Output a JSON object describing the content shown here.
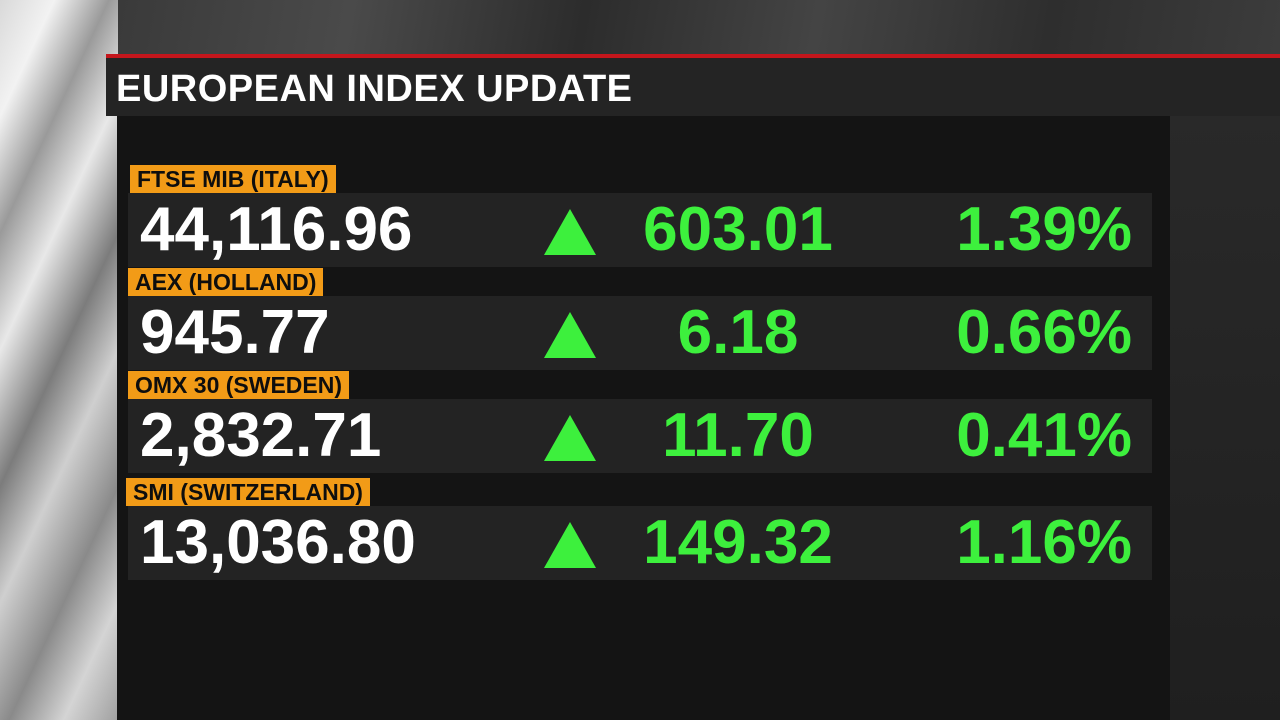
{
  "title": "EUROPEAN INDEX UPDATE",
  "colors": {
    "accent_red": "#c4161c",
    "label_orange": "#f29b17",
    "up_green": "#3df03d"
  },
  "indices": [
    {
      "name": "FTSE MIB (ITALY)",
      "value": "44,116.96",
      "direction_icon": "up-arrow-icon",
      "change": "603.01",
      "pct": "1.39%"
    },
    {
      "name": "AEX (HOLLAND)",
      "value": "945.77",
      "direction_icon": "up-arrow-icon",
      "change": "6.18",
      "pct": "0.66%"
    },
    {
      "name": "OMX 30 (SWEDEN)",
      "value": "2,832.71",
      "direction_icon": "up-arrow-icon",
      "change": "11.70",
      "pct": "0.41%"
    },
    {
      "name": "SMI (SWITZERLAND)",
      "value": "13,036.80",
      "direction_icon": "up-arrow-icon",
      "change": "149.32",
      "pct": "1.16%"
    }
  ]
}
